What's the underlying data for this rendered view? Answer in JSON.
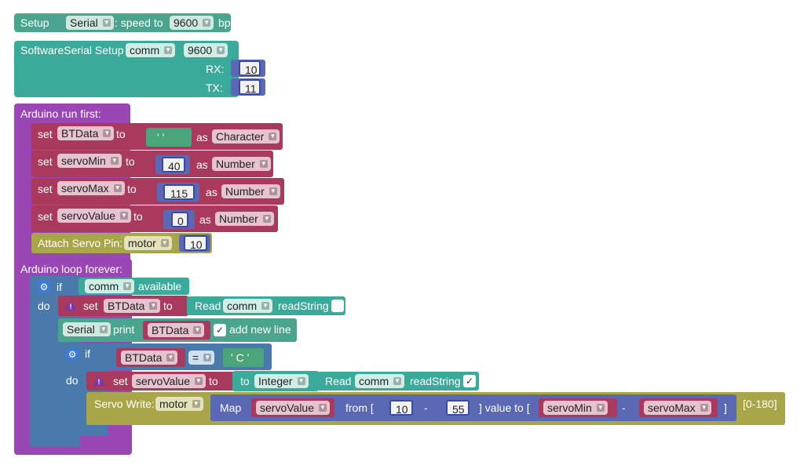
{
  "colors": {
    "setup_teal": "#4ba58e",
    "swserial_teal": "#3aab9a",
    "arduino_purple": "#9a46b4",
    "variable_pink": "#a93a5d",
    "math_blue": "#5b68b4",
    "olive": "#a8a648",
    "control_blue": "#4a7aab",
    "text_green": "#4aa57a"
  },
  "setup_serial": {
    "setup_label": "Setup",
    "port_value": "Serial",
    "speed_label": ": speed to",
    "baud_value": "9600",
    "bps_label": "bps"
  },
  "software_serial": {
    "title": "SoftwareSerial Setup",
    "name_value": "comm",
    "baud_value": "9600",
    "rx_label": "RX:",
    "rx_value": "10",
    "tx_label": "TX:",
    "tx_value": "11"
  },
  "run_first": {
    "title": "Arduino run first:",
    "set_label": "set",
    "to_label": "to",
    "as_label": "as",
    "var1": "BTData",
    "var1_value": "' '",
    "var1_type": "Character",
    "var2": "servoMin",
    "var2_value": "40",
    "var2_type": "Number",
    "var3": "servoMax",
    "var3_value": "115",
    "var3_type": "Number",
    "var4": "servoValue",
    "var4_value": "0",
    "var4_type": "Number",
    "attach_label": "Attach Servo Pin:",
    "attach_servo": "motor",
    "attach_pin": "10"
  },
  "loop_forever": {
    "title": "Arduino loop forever:",
    "if_label": "if",
    "do_label": "do",
    "comm_value": "comm",
    "available_label": "available",
    "set_label": "set",
    "btdata_var": "BTData",
    "to_label": "to",
    "read_label": "Read",
    "readstring_label": "readString",
    "serial_value": "Serial",
    "print_label": "print",
    "print_var": "BTData",
    "check_mark": "✓",
    "newline_label": "add new line",
    "if2_label": "if",
    "cmp_var": "BTData",
    "cmp_op": "=",
    "cmp_char": "' C '",
    "do2_label": "do",
    "servovalue_var": "servoValue",
    "to_word": "to",
    "integer_value": "Integer",
    "read2_label": "Read",
    "comm2_value": "comm",
    "readstring2_label": "readString",
    "servo_write_label": "Servo Write:",
    "servo_name": "motor",
    "map_label": "Map",
    "map_var": "servoValue",
    "from_label": "from [",
    "from_low": "10",
    "dash": "-",
    "from_high": "55",
    "value_to_label": "] value to [",
    "to_low_var": "servoMin",
    "to_high_var": "servoMax",
    "close_bracket": "]",
    "range_hint": "[0-180]"
  },
  "icons": {
    "gear": "gear-icon",
    "warning": "warning-icon",
    "dropdown": "chevron-down-icon",
    "check": "check-icon"
  }
}
